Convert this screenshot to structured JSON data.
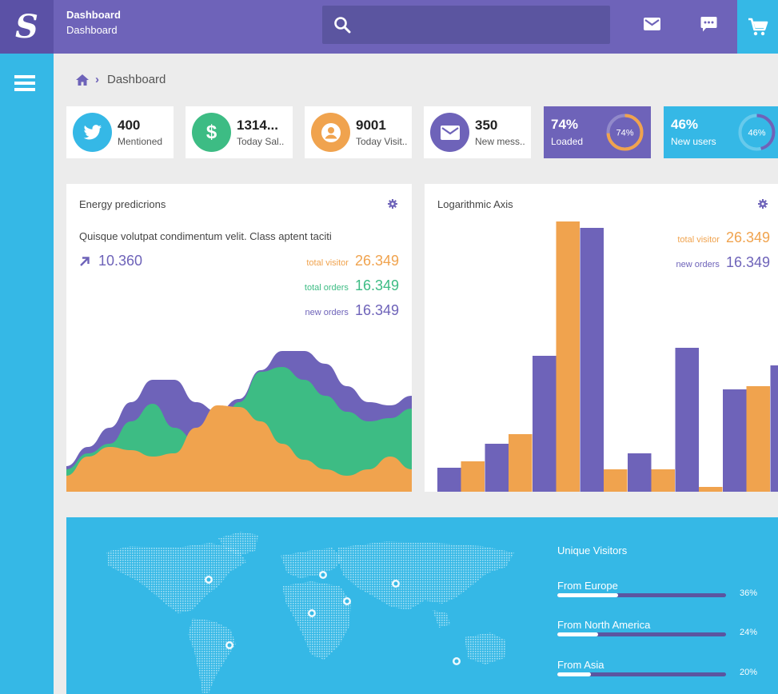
{
  "header": {
    "logo_letter": "S",
    "title": "Dashboard",
    "subtitle": "Dashboard",
    "search_placeholder": "",
    "icons": [
      "mail-icon",
      "chat-icon",
      "cart-icon"
    ]
  },
  "breadcrumb": {
    "home_icon": "home-icon",
    "current": "Dashboard"
  },
  "stats": [
    {
      "value": "400",
      "label": "Mentioned",
      "icon": "twitter-icon",
      "color": "#35b8e6"
    },
    {
      "value": "1314...",
      "label": "Today Sal..",
      "icon": "dollar-icon",
      "color": "#3dbc84"
    },
    {
      "value": "9001",
      "label": "Today Visit..",
      "icon": "user-icon",
      "color": "#f0a34e"
    },
    {
      "value": "350",
      "label": "New mess..",
      "icon": "envelope-icon",
      "color": "#6e63b9"
    }
  ],
  "progress_cards": [
    {
      "value": "74%",
      "label": "Loaded",
      "ring_text": "74%",
      "percent": 74,
      "bg": "#6e63b9",
      "ring_color": "#f0a34e"
    },
    {
      "value": "46%",
      "label": "New users",
      "ring_text": "46%",
      "percent": 46,
      "bg": "#35b8e6",
      "ring_color": "#6e63b9"
    }
  ],
  "energy": {
    "title": "Energy predicrions",
    "description": "Quisque volutpat condimentum velit. Class aptent taciti",
    "trend_value": "10.360",
    "stats": [
      {
        "label": "total visitor",
        "value": "26.349",
        "color": "#f0a34e"
      },
      {
        "label": "total orders",
        "value": "16.349",
        "color": "#3dbc84"
      },
      {
        "label": "new orders",
        "value": "16.349",
        "color": "#6e63b9"
      }
    ]
  },
  "logaxis": {
    "title": "Logarithmic Axis",
    "stats": [
      {
        "label": "total visitor",
        "value": "26.349",
        "color": "#f0a34e"
      },
      {
        "label": "new orders",
        "value": "16.349",
        "color": "#6e63b9"
      }
    ]
  },
  "chart_data": [
    {
      "type": "area",
      "series": [
        {
          "values": [
            10,
            22,
            28,
            26,
            22,
            24,
            40,
            54,
            53,
            44,
            30,
            20,
            14,
            10,
            14,
            22,
            14
          ]
        },
        {
          "values": [
            14,
            24,
            30,
            44,
            55,
            40,
            32,
            35,
            56,
            75,
            78,
            70,
            60,
            50,
            44,
            46,
            52
          ]
        },
        {
          "values": [
            16,
            28,
            40,
            56,
            70,
            70,
            56,
            50,
            58,
            76,
            88,
            88,
            80,
            66,
            56,
            54,
            60
          ]
        }
      ],
      "series_colors": [
        "#f0a34e",
        "#3dbc84",
        "#6e63b9"
      ],
      "ylim": [
        0,
        100
      ]
    },
    {
      "type": "bar",
      "series": [
        {
          "values": [
            30,
            60,
            170,
            330,
            48,
            180,
            128,
            158
          ]
        },
        {
          "values": [
            38,
            72,
            338,
            28,
            28,
            6,
            132,
            0
          ]
        }
      ],
      "series_colors": [
        "#6e63b9",
        "#f0a34e"
      ],
      "ylim": [
        0,
        350
      ]
    }
  ],
  "unique_visitors": {
    "title": "Unique Visitors",
    "rows": [
      {
        "label": "From Europe",
        "percent_text": "36%",
        "fill": 0.36
      },
      {
        "label": "From North America",
        "percent_text": "24%",
        "fill": 0.24
      },
      {
        "label": "From Asia",
        "percent_text": "20%",
        "fill": 0.2
      }
    ]
  }
}
